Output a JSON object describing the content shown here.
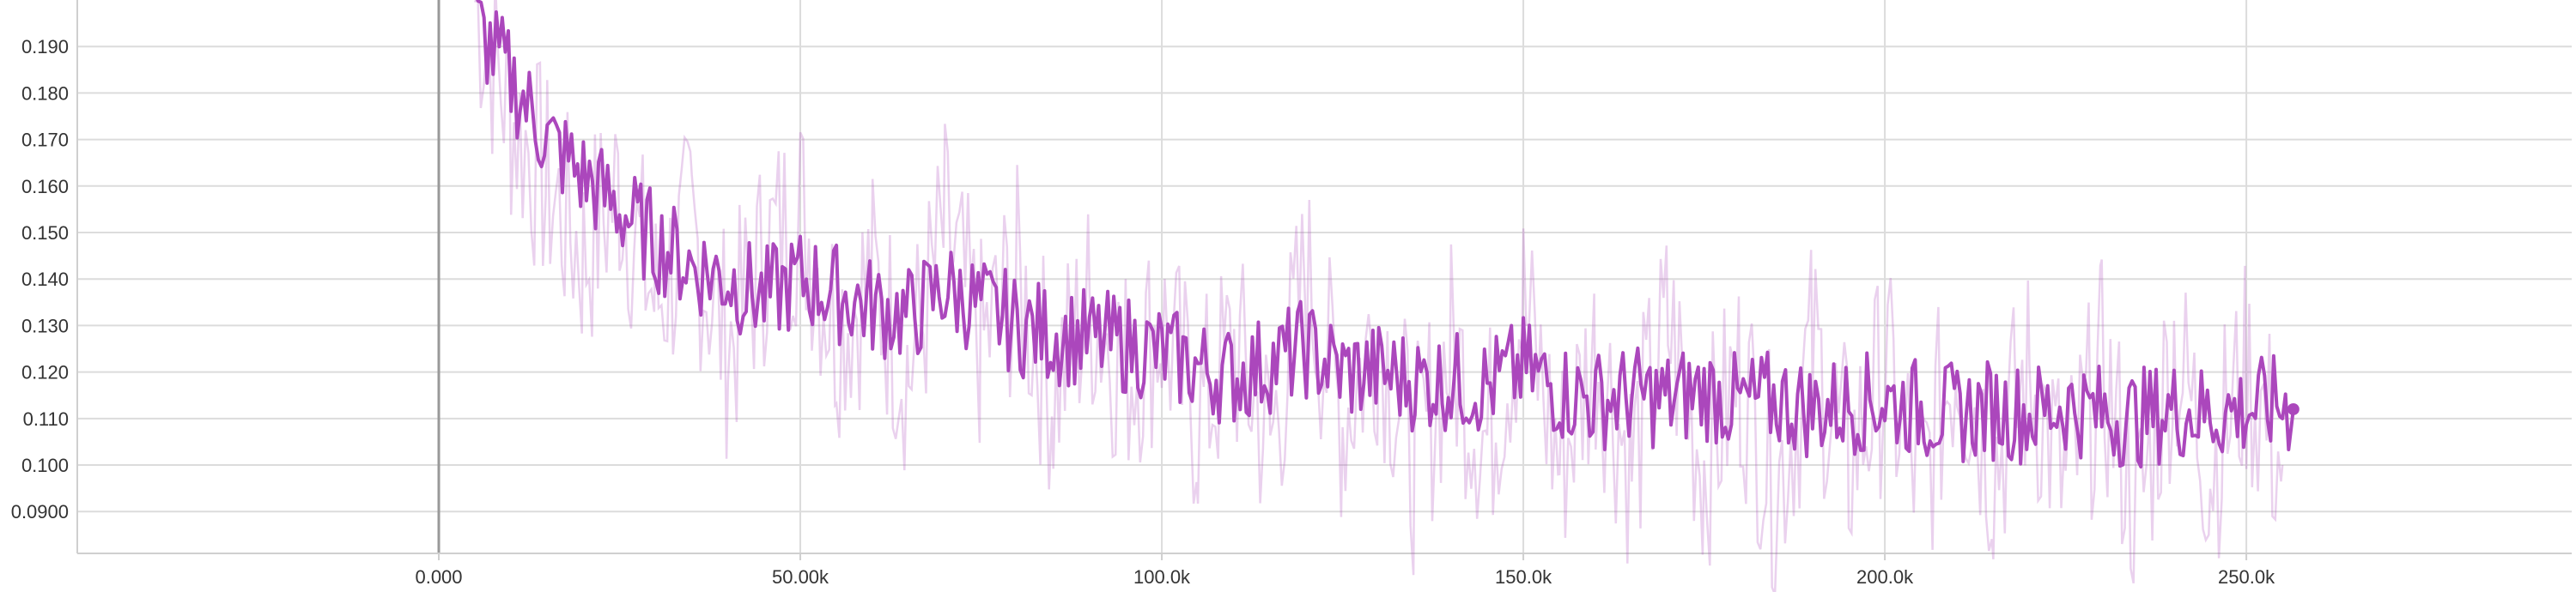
{
  "chart_data": {
    "type": "line",
    "title": "",
    "xlabel": "",
    "ylabel": "",
    "xlim": [
      -50000,
      295000
    ],
    "ylim": [
      0.081,
      0.2
    ],
    "x_ticks": [
      0,
      50000,
      100000,
      150000,
      200000,
      250000
    ],
    "x_tick_labels": [
      "0.000",
      "50.00k",
      "100.0k",
      "150.0k",
      "200.0k",
      "250.0k"
    ],
    "y_ticks": [
      0.09,
      0.1,
      0.11,
      0.12,
      0.13,
      0.14,
      0.15,
      0.16,
      0.17,
      0.18,
      0.19
    ],
    "y_tick_labels": [
      "0.0900",
      "0.100",
      "0.110",
      "0.120",
      "0.130",
      "0.140",
      "0.150",
      "0.160",
      "0.170",
      "0.180",
      "0.190"
    ],
    "grid": true,
    "legend": "none",
    "series": [
      {
        "role": "smoothed",
        "color": "#ab47bc",
        "x": [
          5000,
          10000,
          15000,
          20000,
          25000,
          30000,
          35000,
          40000,
          45000,
          50000,
          55000,
          60000,
          65000,
          70000,
          75000,
          80000,
          85000,
          90000,
          95000,
          100000,
          105000,
          110000,
          115000,
          120000,
          125000,
          130000,
          135000,
          140000,
          145000,
          150000,
          155000,
          160000,
          165000,
          170000,
          175000,
          180000,
          185000,
          190000,
          195000,
          200000,
          205000,
          210000,
          215000,
          220000,
          225000,
          230000,
          235000,
          240000,
          245000,
          250000,
          255000,
          256500
        ],
        "y": [
          0.195,
          0.183,
          0.17,
          0.162,
          0.155,
          0.148,
          0.143,
          0.14,
          0.136,
          0.14,
          0.137,
          0.134,
          0.132,
          0.138,
          0.134,
          0.13,
          0.128,
          0.127,
          0.126,
          0.124,
          0.121,
          0.119,
          0.122,
          0.125,
          0.12,
          0.12,
          0.118,
          0.118,
          0.117,
          0.121,
          0.116,
          0.114,
          0.115,
          0.114,
          0.116,
          0.113,
          0.114,
          0.112,
          0.113,
          0.114,
          0.112,
          0.111,
          0.112,
          0.111,
          0.113,
          0.111,
          0.11,
          0.112,
          0.111,
          0.112,
          0.113,
          0.112
        ]
      },
      {
        "role": "raw",
        "color": "#ab47bc",
        "opacity": 0.25,
        "x": [
          5000,
          10000,
          15000,
          20000,
          25000,
          30000,
          35000,
          40000,
          45000,
          50000,
          55000,
          60000,
          65000,
          70000,
          75000,
          80000,
          85000,
          90000,
          95000,
          100000,
          105000,
          110000,
          115000,
          120000,
          125000,
          130000,
          135000,
          140000,
          145000,
          150000,
          155000,
          160000,
          165000,
          170000,
          175000,
          180000,
          185000,
          190000,
          195000,
          200000,
          205000,
          210000,
          215000,
          220000,
          225000,
          230000,
          235000,
          240000,
          245000,
          250000,
          255000
        ],
        "y": [
          0.2,
          0.175,
          0.16,
          0.145,
          0.16,
          0.135,
          0.15,
          0.125,
          0.145,
          0.155,
          0.13,
          0.14,
          0.12,
          0.15,
          0.125,
          0.14,
          0.115,
          0.135,
          0.12,
          0.13,
          0.11,
          0.125,
          0.105,
          0.14,
          0.11,
          0.13,
          0.1,
          0.125,
          0.105,
          0.135,
          0.1,
          0.125,
          0.1,
          0.13,
          0.1,
          0.12,
          0.095,
          0.125,
          0.1,
          0.12,
          0.095,
          0.125,
          0.1,
          0.12,
          0.095,
          0.12,
          0.09,
          0.125,
          0.1,
          0.12,
          0.1
        ]
      }
    ]
  }
}
